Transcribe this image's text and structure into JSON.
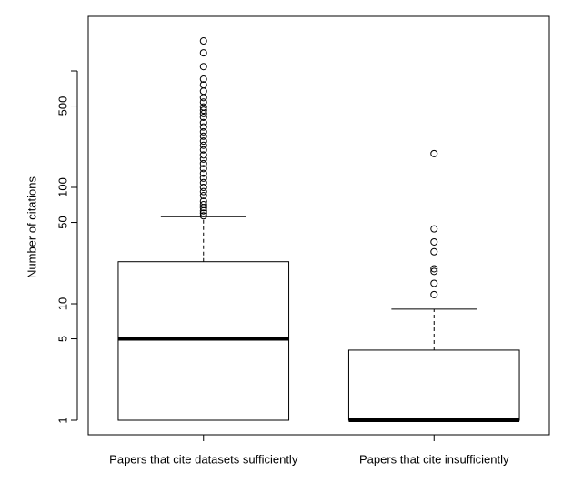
{
  "chart_data": {
    "type": "box",
    "y_label": "Number of citations",
    "y_scale": "log",
    "categories": [
      "Papers that cite datasets sufficiently",
      "Papers that cite insufficiently"
    ],
    "boxes": [
      {
        "min": 1,
        "q1": 1,
        "median": 5,
        "q3": 23,
        "max": 56,
        "outliers": [
          57,
          60,
          63,
          67,
          71,
          76,
          85,
          92,
          100,
          110,
          120,
          132,
          145,
          160,
          175,
          190,
          210,
          230,
          250,
          275,
          300,
          330,
          360,
          400,
          430,
          460,
          490,
          540,
          590,
          670,
          760,
          850,
          1090,
          1430,
          1810
        ]
      },
      {
        "min": 1,
        "q1": 1,
        "median": 1,
        "q3": 4,
        "max": 9,
        "outliers": [
          12,
          15,
          19,
          20,
          28,
          34,
          44,
          195
        ]
      }
    ],
    "ylim": [
      0.75,
      2943
    ],
    "yticks": [
      1,
      5,
      10,
      50,
      100,
      500,
      {
        "value": 1000,
        "label": null
      }
    ],
    "color": "#000000"
  }
}
